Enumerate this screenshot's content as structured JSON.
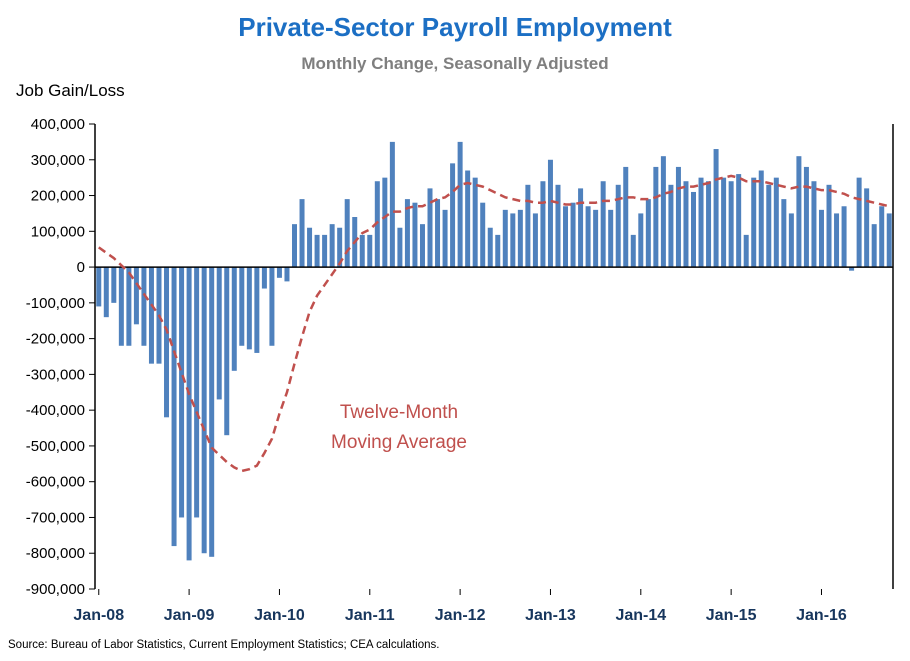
{
  "header": {
    "title": "Private-Sector Payroll Employment",
    "subtitle": "Monthly Change, Seasonally Adjusted",
    "axis_title": "Job Gain/Loss"
  },
  "annotation": {
    "line1": "Twelve-Month",
    "line2": "Moving Average"
  },
  "source": "Source: Bureau of Labor Statistics, Current Employment Statistics; CEA calculations.",
  "colors": {
    "bar": "#4f81bd",
    "moving_average": "#c0504d",
    "title": "#1c6fc4",
    "subtitle": "#7f7f7f",
    "x_tick_label": "#17365d",
    "y_tick_label": "#000000",
    "axis": "#000000"
  },
  "chart_data": {
    "type": "bar",
    "title": "Private-Sector Payroll Employment",
    "subtitle": "Monthly Change, Seasonally Adjusted",
    "ylabel": "Job Gain/Loss",
    "xlabel": "",
    "ylim": [
      -900000,
      400000
    ],
    "ytick_step": 100000,
    "grid": false,
    "unit": "jobs (series values stored in thousands of jobs)",
    "x_start": "Jan-08",
    "x_end": "Oct-16",
    "x_ticks": [
      {
        "label": "Jan-08",
        "month": 0
      },
      {
        "label": "Jan-09",
        "month": 12
      },
      {
        "label": "Jan-10",
        "month": 24
      },
      {
        "label": "Jan-11",
        "month": 36
      },
      {
        "label": "Jan-12",
        "month": 48
      },
      {
        "label": "Jan-13",
        "month": 60
      },
      {
        "label": "Jan-14",
        "month": 72
      },
      {
        "label": "Jan-15",
        "month": 84
      },
      {
        "label": "Jan-16",
        "month": 96
      }
    ],
    "series": [
      {
        "name": "Monthly change in private-sector payroll employment",
        "type": "bar",
        "values_thousands": [
          -110,
          -140,
          -100,
          -220,
          -220,
          -160,
          -220,
          -270,
          -270,
          -420,
          -780,
          -700,
          -820,
          -700,
          -800,
          -810,
          -370,
          -470,
          -290,
          -220,
          -230,
          -240,
          -60,
          -220,
          -30,
          -40,
          120,
          190,
          110,
          90,
          90,
          120,
          110,
          190,
          140,
          90,
          90,
          240,
          250,
          350,
          110,
          190,
          180,
          120,
          220,
          190,
          160,
          290,
          350,
          270,
          250,
          180,
          110,
          90,
          160,
          150,
          160,
          230,
          150,
          240,
          300,
          230,
          170,
          180,
          220,
          170,
          160,
          240,
          160,
          230,
          280,
          90,
          150,
          190,
          280,
          310,
          230,
          280,
          240,
          210,
          250,
          240,
          330,
          250,
          240,
          260,
          90,
          250,
          270,
          230,
          250,
          190,
          150,
          310,
          280,
          240,
          160,
          230,
          150,
          170,
          -10,
          250,
          220,
          120,
          170,
          150
        ]
      },
      {
        "name": "Twelve-Month Moving Average",
        "type": "line",
        "dashed": true,
        "values_thousands": [
          55,
          40,
          25,
          5,
          -15,
          -45,
          -75,
          -105,
          -135,
          -175,
          -235,
          -295,
          -355,
          -405,
          -455,
          -505,
          -525,
          -545,
          -560,
          -570,
          -565,
          -555,
          -520,
          -480,
          -410,
          -350,
          -270,
          -195,
          -125,
          -80,
          -50,
          -20,
          10,
          45,
          70,
          95,
          105,
          125,
          140,
          155,
          155,
          165,
          170,
          170,
          180,
          190,
          195,
          210,
          230,
          235,
          230,
          225,
          215,
          205,
          195,
          190,
          185,
          185,
          180,
          180,
          185,
          180,
          175,
          175,
          180,
          180,
          180,
          185,
          185,
          190,
          195,
          195,
          190,
          190,
          195,
          205,
          210,
          220,
          225,
          225,
          230,
          235,
          245,
          250,
          255,
          250,
          240,
          240,
          240,
          235,
          230,
          225,
          220,
          225,
          225,
          220,
          215,
          215,
          210,
          205,
          195,
          190,
          185,
          180,
          175,
          170
        ]
      }
    ]
  }
}
